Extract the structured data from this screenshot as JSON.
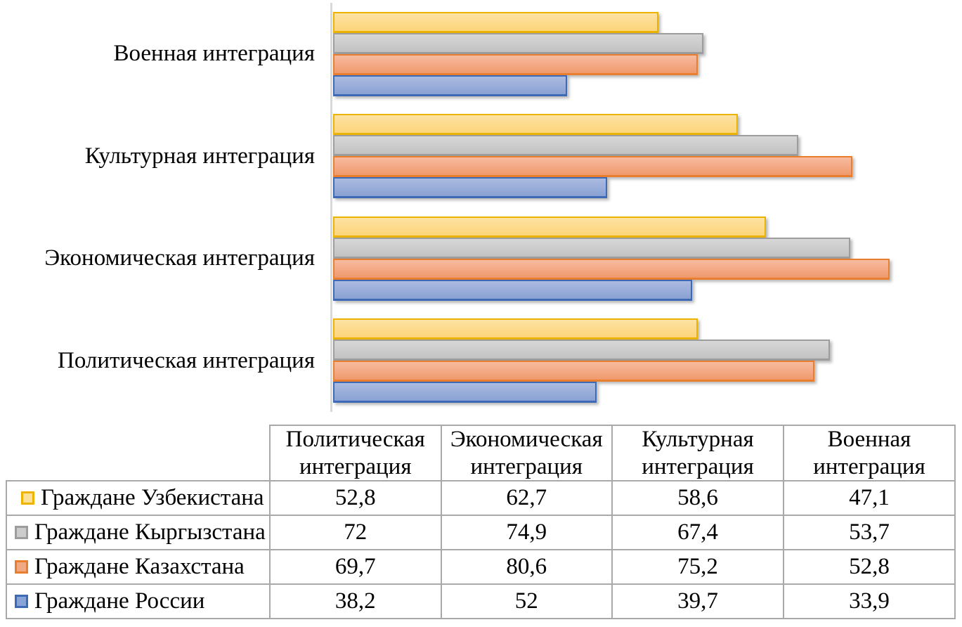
{
  "chart_data": {
    "type": "bar",
    "orientation": "horizontal",
    "title": "",
    "xlabel": "",
    "ylabel": "",
    "categories": [
      "Политическая интеграция",
      "Экономическая интеграция",
      "Культурная интеграция",
      "Военная интеграция"
    ],
    "category_display_order_top_to_bottom": [
      "Военная интеграция",
      "Культурная интеграция",
      "Экономическая интеграция",
      "Политическая интеграция"
    ],
    "series": [
      {
        "name": "Граждане Узбекистана",
        "values": [
          52.8,
          62.7,
          58.6,
          47.1
        ],
        "border": "#EDB302",
        "fill_top": "#FDE2A2",
        "fill_bottom": "#FDD57B",
        "swatch_fill": "#FBE198"
      },
      {
        "name": "Граждане Кыргызстана",
        "values": [
          72,
          74.9,
          67.4,
          53.7
        ],
        "border": "#9D9D9D",
        "fill_top": "#D7D7D7",
        "fill_bottom": "#C2C2C2",
        "swatch_fill": "#CCCCCC"
      },
      {
        "name": "Граждане Казахстана",
        "values": [
          69.7,
          80.6,
          75.2,
          52.8
        ],
        "border": "#E87E2E",
        "fill_top": "#F7BB9F",
        "fill_bottom": "#F0996C",
        "swatch_fill": "#F1A983"
      },
      {
        "name": "Граждане России",
        "values": [
          38.2,
          52,
          39.7,
          33.9
        ],
        "border": "#3E69B4",
        "fill_top": "#ABBBE0",
        "fill_bottom": "#89A1D3",
        "swatch_fill": "#87A3D8"
      }
    ],
    "value_axis": {
      "min": 0,
      "max": 90,
      "labels_visible": false,
      "line_color": "#D9D9D9"
    },
    "grid": false,
    "legend_position": "in-table-rows"
  },
  "table": {
    "corner": "",
    "columns": [
      "Политическая\nинтеграция",
      "Экономическая\nинтеграция",
      "Культурная\nинтеграция",
      "Военная\nинтеграция"
    ],
    "rows": [
      {
        "label": "Граждане Узбекистана",
        "values": [
          "52,8",
          "62,7",
          "58,6",
          "47,1"
        ]
      },
      {
        "label": "Граждане Кыргызстана",
        "values": [
          "72",
          "74,9",
          "67,4",
          "53,7"
        ]
      },
      {
        "label": "Граждане Казахстана",
        "values": [
          "69,7",
          "80,6",
          "75,2",
          "52,8"
        ]
      },
      {
        "label": "Граждане России",
        "values": [
          "38,2",
          "52",
          "39,7",
          "33,9"
        ]
      }
    ],
    "border_color": "#A9A9A9"
  }
}
